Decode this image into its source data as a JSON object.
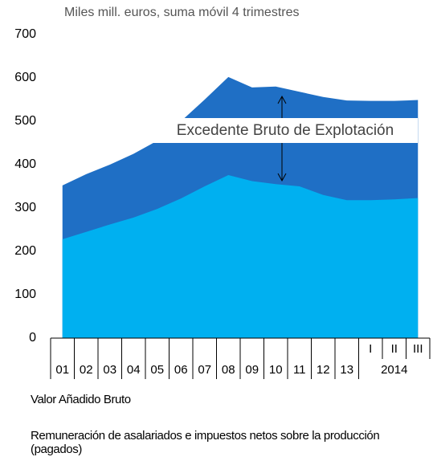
{
  "chart_data": {
    "type": "area",
    "subtitle": "Miles mill. euros, suma móvil 4 trimestres",
    "categories": [
      "01",
      "02",
      "03",
      "04",
      "05",
      "06",
      "07",
      "08",
      "09",
      "10",
      "11",
      "12",
      "13",
      "I",
      "II",
      "III"
    ],
    "group_label": "2014",
    "series": [
      {
        "name": "Valor Añadido Bruto",
        "color": "#1f6fc5",
        "values": [
          352,
          378,
          400,
          425,
          455,
          500,
          550,
          602,
          578,
          580,
          568,
          556,
          548,
          547,
          547,
          549
        ]
      },
      {
        "name": "Remuneración de asalariados e impuestos netos sobre la producción (pagados)",
        "color": "#00b0f0",
        "values": [
          228,
          245,
          262,
          278,
          298,
          322,
          350,
          376,
          362,
          355,
          350,
          330,
          318,
          318,
          320,
          323
        ]
      }
    ],
    "annotation": "Excedente Bruto de Explotación",
    "ylim": [
      0,
      700
    ],
    "yticks": [
      0,
      100,
      200,
      300,
      400,
      500,
      600,
      700
    ],
    "grid": false
  }
}
